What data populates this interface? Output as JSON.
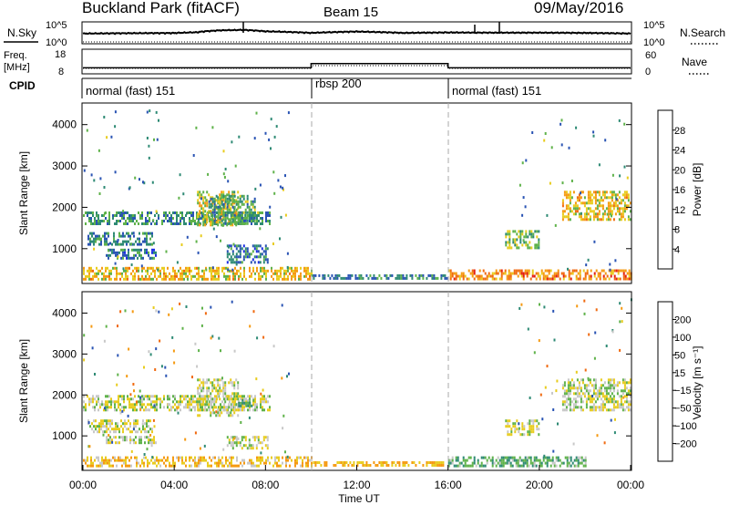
{
  "header": {
    "title": "Buckland Park (fitACF)",
    "beam": "Beam 15",
    "date": "09/May/2016"
  },
  "panels": {
    "nsky": {
      "left_label": "N.Sky",
      "right_label": "N.Search",
      "left_ticks": [
        "10^5",
        "10^0"
      ],
      "right_ticks": [
        "10^5",
        "10^0"
      ]
    },
    "freq": {
      "left_label_1": "Freq.",
      "left_label_2": "[MHz]",
      "right_label": "Nave",
      "left_ticks": [
        "18",
        "8"
      ],
      "right_ticks": [
        "60",
        "0"
      ]
    },
    "cpid": {
      "label": "CPID",
      "segments": [
        "normal (fast) 151",
        "rbsp 200",
        "normal (fast) 151"
      ]
    }
  },
  "axes": {
    "x_ticks": [
      "00:00",
      "04:00",
      "08:00",
      "12:00",
      "16:00",
      "20:00",
      "00:00"
    ],
    "x_label": "Time UT",
    "y_ticks": [
      "1000",
      "2000",
      "3000",
      "4000"
    ],
    "y_label": "Slant Range [km]"
  },
  "colorbars": {
    "power": {
      "label": "Power [dB]",
      "ticks": [
        "4",
        "8",
        "12",
        "16",
        "20",
        "24",
        "28"
      ],
      "colors": [
        "#1e2ee6",
        "#2a54b4",
        "#2e8a74",
        "#5fb24a",
        "#e8cc1e",
        "#f59a12",
        "#f06a10",
        "#e41c12"
      ]
    },
    "velocity": {
      "label": "Velocity [m s⁻¹]",
      "ticks": [
        "200",
        "100",
        "50",
        "15",
        "−15",
        "−50",
        "−100",
        "−200"
      ],
      "colors": [
        "#1e2ee6",
        "#2a54b4",
        "#2e8a74",
        "#5fb24a",
        "#c8c8c8",
        "#e8cc1e",
        "#f59a12",
        "#f06a10",
        "#e41c12"
      ]
    }
  },
  "chart_data": [
    {
      "type": "line",
      "name": "N.Sky",
      "x_range_hours": [
        0,
        24
      ],
      "y_scale": "log",
      "ylim": [
        1,
        100000
      ],
      "x": [
        0,
        2,
        4,
        5,
        6,
        7,
        8,
        10,
        12,
        14,
        16,
        18,
        20,
        22,
        24
      ],
      "y": [
        200,
        250,
        280,
        450,
        1500,
        2000,
        800,
        300,
        700,
        300,
        400,
        350,
        350,
        300,
        200
      ]
    },
    {
      "type": "line",
      "name": "Freq",
      "x_range_hours": [
        0,
        24
      ],
      "ylim": [
        8,
        18
      ],
      "x": [
        0,
        10,
        10,
        16,
        16,
        24
      ],
      "y": [
        10,
        10,
        12,
        12,
        10,
        10
      ]
    },
    {
      "type": "heatmap",
      "name": "Power",
      "x_range_hours": [
        0,
        24
      ],
      "ylim_km": [
        180,
        4500
      ],
      "colorbar_range_db": [
        0,
        30
      ],
      "regions": [
        {
          "t": [
            0,
            8.2
          ],
          "km": [
            1600,
            1900
          ],
          "value": 10
        },
        {
          "t": [
            0.2,
            3
          ],
          "km": [
            1100,
            1400
          ],
          "value": 9
        },
        {
          "t": [
            1,
            3.2
          ],
          "km": [
            800,
            1000
          ],
          "value": 8
        },
        {
          "t": [
            5,
            6.8
          ],
          "km": [
            1600,
            2400
          ],
          "value": 16
        },
        {
          "t": [
            5.5,
            7.5
          ],
          "km": [
            1600,
            2300
          ],
          "value": 11
        },
        {
          "t": [
            6.3,
            8.1
          ],
          "km": [
            700,
            1100
          ],
          "value": 7
        },
        {
          "t": [
            18.5,
            20
          ],
          "km": [
            1000,
            1450
          ],
          "value": 13
        },
        {
          "t": [
            21,
            24
          ],
          "km": [
            1700,
            2400
          ],
          "value": 18
        },
        {
          "t": [
            0,
            10
          ],
          "km": [
            280,
            560
          ],
          "value": 18
        },
        {
          "t": [
            10,
            16
          ],
          "km": [
            250,
            380
          ],
          "value": 9
        },
        {
          "t": [
            16,
            24
          ],
          "km": [
            250,
            500
          ],
          "value": 22
        }
      ]
    },
    {
      "type": "heatmap",
      "name": "Velocity",
      "x_range_hours": [
        0,
        24
      ],
      "ylim_km": [
        180,
        4500
      ],
      "colorbar_range_ms": [
        -200,
        200
      ],
      "regions": [
        {
          "t": [
            0,
            8.2
          ],
          "km": [
            1600,
            2000
          ],
          "value": 0
        },
        {
          "t": [
            0.2,
            3
          ],
          "km": [
            1100,
            1400
          ],
          "value": 0
        },
        {
          "t": [
            1,
            3.2
          ],
          "km": [
            800,
            1000
          ],
          "value": 5
        },
        {
          "t": [
            5,
            6.8
          ],
          "km": [
            1500,
            2400
          ],
          "value": -5
        },
        {
          "t": [
            6.8,
            7.5
          ],
          "km": [
            1700,
            1900
          ],
          "value": 40
        },
        {
          "t": [
            6.3,
            8.1
          ],
          "km": [
            700,
            1000
          ],
          "value": 0
        },
        {
          "t": [
            18.5,
            20
          ],
          "km": [
            1000,
            1400
          ],
          "value": -10
        },
        {
          "t": [
            21,
            24
          ],
          "km": [
            1600,
            2400
          ],
          "value": 0
        },
        {
          "t": [
            0,
            10
          ],
          "km": [
            250,
            500
          ],
          "value": -40
        },
        {
          "t": [
            10,
            16
          ],
          "km": [
            250,
            380
          ],
          "value": -60
        },
        {
          "t": [
            16,
            22
          ],
          "km": [
            250,
            500
          ],
          "value": 40
        }
      ]
    }
  ]
}
